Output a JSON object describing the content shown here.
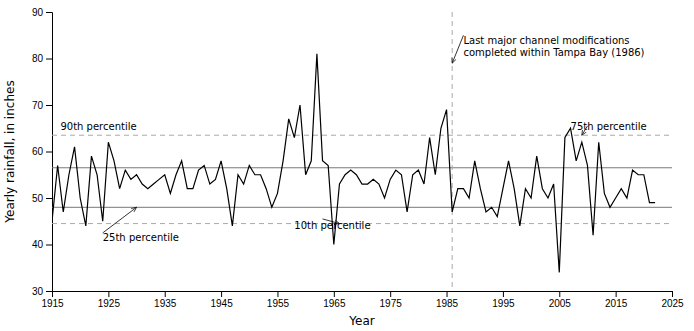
{
  "chart_data": {
    "type": "line",
    "x": [
      1915,
      1916,
      1917,
      1918,
      1919,
      1920,
      1921,
      1922,
      1923,
      1924,
      1925,
      1926,
      1927,
      1928,
      1929,
      1930,
      1931,
      1932,
      1933,
      1934,
      1935,
      1936,
      1937,
      1938,
      1939,
      1940,
      1941,
      1942,
      1943,
      1944,
      1945,
      1946,
      1947,
      1948,
      1949,
      1950,
      1951,
      1952,
      1953,
      1954,
      1955,
      1956,
      1957,
      1958,
      1959,
      1960,
      1961,
      1962,
      1963,
      1964,
      1965,
      1966,
      1967,
      1968,
      1969,
      1970,
      1971,
      1972,
      1973,
      1974,
      1975,
      1976,
      1977,
      1978,
      1979,
      1980,
      1981,
      1982,
      1983,
      1984,
      1985,
      1986,
      1987,
      1988,
      1989,
      1990,
      1991,
      1992,
      1993,
      1994,
      1995,
      1996,
      1997,
      1998,
      1999,
      2000,
      2001,
      2002,
      2003,
      2004,
      2005,
      2006,
      2007,
      2008,
      2009,
      2010,
      2011,
      2012,
      2013,
      2014,
      2015,
      2016,
      2017,
      2018,
      2019,
      2020,
      2021,
      2022
    ],
    "values": [
      45,
      57,
      47,
      55,
      61,
      50,
      44,
      59,
      55,
      45,
      62,
      58,
      52,
      56,
      54,
      55,
      53,
      52,
      53,
      54,
      55,
      51,
      55,
      58,
      52,
      52,
      56,
      57,
      53,
      54,
      58,
      52,
      44,
      55,
      53,
      57,
      55,
      55,
      52,
      48,
      51,
      58,
      67,
      63,
      70,
      55,
      58,
      81,
      58,
      57,
      40,
      53,
      55,
      56,
      55,
      53,
      53,
      54,
      53,
      50,
      54,
      56,
      55,
      47,
      55,
      56,
      53,
      63,
      55,
      65,
      69,
      47,
      52,
      52,
      50,
      58,
      52,
      47,
      48,
      46,
      52,
      58,
      52,
      44,
      52,
      50,
      59,
      52,
      50,
      53,
      34,
      63,
      65,
      58,
      62,
      57,
      42,
      62,
      51,
      48,
      50,
      52,
      50,
      56,
      55,
      55,
      49,
      49
    ],
    "color": "#000000",
    "xlim": [
      1915,
      2025
    ],
    "ylim": [
      30,
      90
    ],
    "xticks": [
      1915,
      1925,
      1935,
      1945,
      1955,
      1965,
      1975,
      1985,
      1995,
      2005,
      2015,
      2025
    ],
    "yticks": [
      30,
      40,
      50,
      60,
      70,
      80,
      90
    ],
    "xlabel": "Year",
    "ylabel": "Yearly rainfall, in inches",
    "hlines": [
      {
        "value": 44.5,
        "line_style": "dashed",
        "color": "#aaaaaa"
      },
      {
        "value": 63.5,
        "line_style": "dashed",
        "color": "#aaaaaa"
      },
      {
        "value": 48.0,
        "line_style": "solid",
        "color": "#777777"
      },
      {
        "value": 56.5,
        "line_style": "solid",
        "color": "#777777"
      }
    ],
    "vlines": [
      {
        "value": 1986,
        "line_style": "dashed",
        "color": "#aaaaaa"
      }
    ],
    "annotations": [
      {
        "text": "90th percentile",
        "x": 1916.5,
        "y": 64.2
      },
      {
        "text": "75th percentile",
        "x": 2007,
        "y": 64.2
      },
      {
        "text": "10th percentile",
        "x": 1958,
        "y": 43.0
      },
      {
        "text": "25th percentile",
        "x": 1924,
        "y": 42.5,
        "arrow_x": 1930,
        "arrow_y": 48.0
      },
      {
        "text": "Last major channel modifications\ncompleted within Tampa Bay (1986)",
        "x": 1988,
        "y": 85,
        "arrow_x": 1986,
        "arrow_y": 79
      }
    ],
    "arrows": [
      {
        "x": 1963,
        "y": 45.5,
        "x2": 1966,
        "y2": 44.5
      },
      {
        "x": 2010,
        "y": 65.5,
        "x2": 2009,
        "y2": 63.5
      }
    ]
  }
}
